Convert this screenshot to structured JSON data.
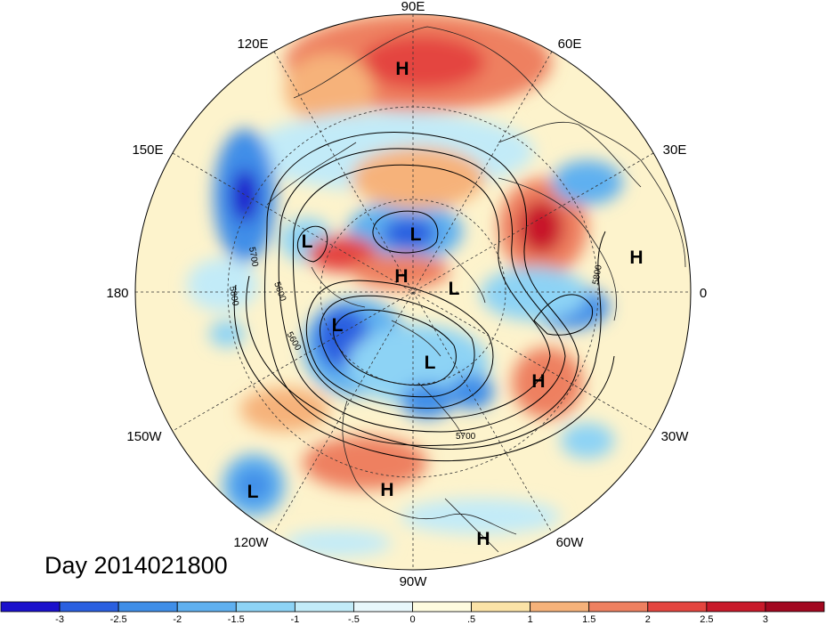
{
  "map": {
    "projection": "north-polar-stereographic",
    "longitude_labels": {
      "deg90E": "90E",
      "deg60E": "60E",
      "deg30E": "30E",
      "deg0": "0",
      "deg30W": "30W",
      "deg60W": "60W",
      "deg90W": "90W",
      "deg120W": "120W",
      "deg150W": "150W",
      "deg180": "180",
      "deg150E": "150E",
      "deg120E": "120E"
    },
    "pressure_centers": [
      {
        "id": "h-eurasia-north",
        "label": "H"
      },
      {
        "id": "l-siberia",
        "label": "L"
      },
      {
        "id": "l-east-asia",
        "label": "L"
      },
      {
        "id": "h-bering",
        "label": "H"
      },
      {
        "id": "l-pole",
        "label": "L"
      },
      {
        "id": "h-europe",
        "label": "H"
      },
      {
        "id": "l-alaska",
        "label": "L"
      },
      {
        "id": "l-canada",
        "label": "L"
      },
      {
        "id": "h-atlantic",
        "label": "H"
      },
      {
        "id": "h-gulf",
        "label": "H"
      },
      {
        "id": "l-pacific",
        "label": "L"
      },
      {
        "id": "h-caribbean",
        "label": "H"
      }
    ],
    "contour_labels": {
      "c5700_west": "5700",
      "c5600_west": "5600",
      "c5800_west": "5800",
      "c5600_south": "5600",
      "c5700_south": "5700",
      "c5800_east": "5800"
    },
    "day_label": "Day 2014021800"
  },
  "colorbar": {
    "ticks": [
      "-3",
      "-2.5",
      "-2",
      "-1.5",
      "-1",
      "-.5",
      "0",
      ".5",
      "1",
      "1.5",
      "2",
      "2.5",
      "3"
    ],
    "colors": [
      "#1a10cc",
      "#2a5fe0",
      "#3f8ee8",
      "#5fb0f0",
      "#8dd3f5",
      "#c2ebf8",
      "#e8f7fb",
      "#fefbdf",
      "#fbe3a7",
      "#f6b27a",
      "#ee8060",
      "#e4453f",
      "#c8192a",
      "#a2071f"
    ]
  }
}
